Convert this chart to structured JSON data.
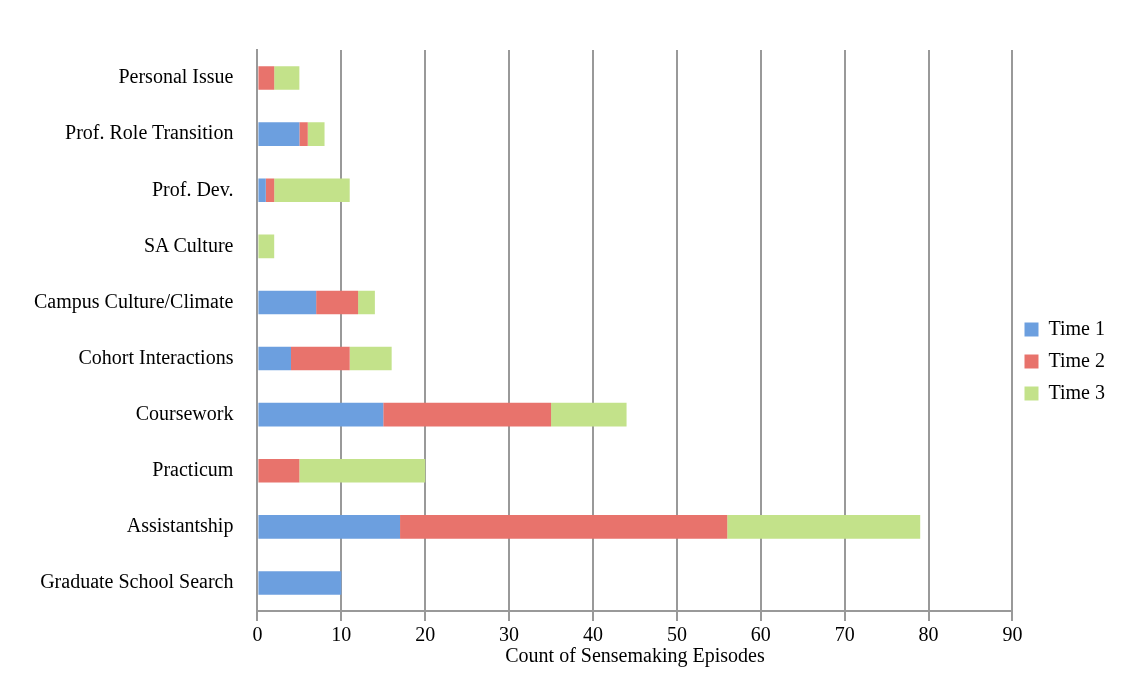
{
  "chart_data": {
    "type": "bar",
    "orientation": "horizontal",
    "stacked": true,
    "categories": [
      "Personal Issue",
      "Prof. Role Transition",
      "Prof. Dev.",
      "SA Culture",
      "Campus Culture/Climate",
      "Cohort Interactions",
      "Coursework",
      "Practicum",
      "Assistantship",
      "Graduate School Search"
    ],
    "series": [
      {
        "name": "Time 1",
        "color": "#6c9fdf",
        "values": [
          0,
          5,
          1,
          0,
          7,
          4,
          15,
          0,
          17,
          10
        ]
      },
      {
        "name": "Time 2",
        "color": "#e8736c",
        "values": [
          2,
          1,
          1,
          0,
          5,
          7,
          20,
          5,
          39,
          0
        ]
      },
      {
        "name": "Time 3",
        "color": "#c3e28a",
        "values": [
          3,
          2,
          9,
          2,
          2,
          5,
          9,
          15,
          23,
          0
        ]
      }
    ],
    "xlabel": "Count of Sensemaking Episodes",
    "xlim": [
      0,
      90
    ],
    "xticks": [
      0,
      10,
      20,
      30,
      40,
      50,
      60,
      70,
      80,
      90
    ],
    "grid": "x",
    "legend": "right"
  }
}
